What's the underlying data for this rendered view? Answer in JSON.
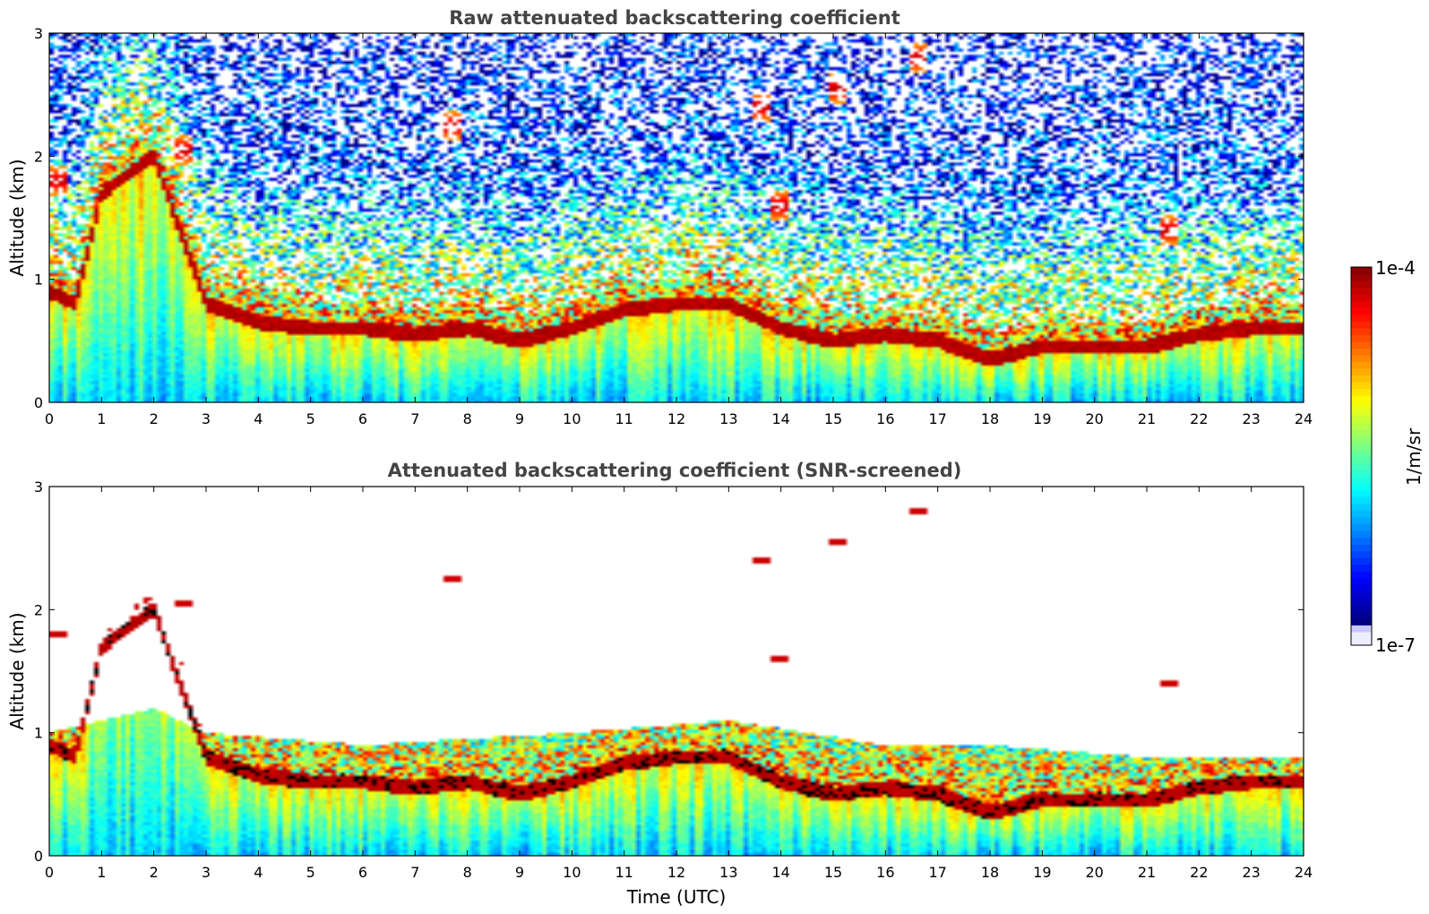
{
  "chart_data": [
    {
      "type": "heatmap",
      "title": "Raw attenuated backscattering coefficient",
      "xlabel": "",
      "ylabel": "Altitude (km)",
      "xlim": [
        0,
        24
      ],
      "ylim": [
        0,
        3
      ],
      "x_ticks": [
        "0",
        "1",
        "2",
        "3",
        "4",
        "5",
        "6",
        "7",
        "8",
        "9",
        "10",
        "11",
        "12",
        "13",
        "14",
        "15",
        "16",
        "17",
        "18",
        "19",
        "20",
        "21",
        "22",
        "23",
        "24"
      ],
      "y_ticks": [
        "0",
        "1",
        "2",
        "3"
      ],
      "colormap": "jet",
      "color_range": [
        1e-07,
        0.0001
      ],
      "color_scale": "log",
      "features": {
        "boundary_layer_top_km": [
          [
            0,
            0.9
          ],
          [
            0.5,
            0.8
          ],
          [
            1,
            1.7
          ],
          [
            2,
            2.0
          ],
          [
            3,
            0.8
          ],
          [
            4,
            0.65
          ],
          [
            5,
            0.6
          ],
          [
            6,
            0.6
          ],
          [
            7,
            0.55
          ],
          [
            8,
            0.6
          ],
          [
            9,
            0.5
          ],
          [
            10,
            0.6
          ],
          [
            11,
            0.75
          ],
          [
            12,
            0.8
          ],
          [
            13,
            0.8
          ],
          [
            14,
            0.6
          ],
          [
            15,
            0.5
          ],
          [
            16,
            0.55
          ],
          [
            17,
            0.5
          ],
          [
            18,
            0.35
          ],
          [
            19,
            0.45
          ],
          [
            20,
            0.45
          ],
          [
            21,
            0.45
          ],
          [
            22,
            0.55
          ],
          [
            23,
            0.6
          ],
          [
            24,
            0.6
          ]
        ],
        "elevated_clouds_km": [
          [
            0.2,
            1.8
          ],
          [
            2.6,
            2.05
          ],
          [
            7.7,
            2.25
          ],
          [
            13.6,
            2.4
          ],
          [
            14.0,
            1.6
          ],
          [
            15.1,
            2.55
          ],
          [
            16.6,
            2.8
          ],
          [
            21.4,
            1.4
          ]
        ],
        "noise_level": "high above boundary layer"
      }
    },
    {
      "type": "heatmap",
      "title": "Attenuated backscattering coefficient (SNR-screened)",
      "xlabel": "Time (UTC)",
      "ylabel": "Altitude (km)",
      "xlim": [
        0,
        24
      ],
      "ylim": [
        0,
        3
      ],
      "x_ticks": [
        "0",
        "1",
        "2",
        "3",
        "4",
        "5",
        "6",
        "7",
        "8",
        "9",
        "10",
        "11",
        "12",
        "13",
        "14",
        "15",
        "16",
        "17",
        "18",
        "19",
        "20",
        "21",
        "22",
        "23",
        "24"
      ],
      "y_ticks": [
        "0",
        "1",
        "2",
        "3"
      ],
      "colormap": "jet",
      "color_range": [
        1e-07,
        0.0001
      ],
      "color_scale": "log",
      "features": {
        "screened": true,
        "screened_top_km": [
          [
            0,
            1.0
          ],
          [
            2,
            1.2
          ],
          [
            3,
            1.0
          ],
          [
            6,
            0.9
          ],
          [
            10,
            1.0
          ],
          [
            13,
            1.1
          ],
          [
            16,
            0.9
          ],
          [
            18,
            0.9
          ],
          [
            21,
            0.8
          ],
          [
            24,
            0.8
          ]
        ]
      }
    }
  ],
  "colorbar": {
    "label": "1/m/sr",
    "max_label": "1e-4",
    "min_label": "1e-7"
  },
  "colors": {
    "stops": [
      "#00007f",
      "#0000ff",
      "#0080ff",
      "#00ffff",
      "#80ff80",
      "#ffff00",
      "#ff8000",
      "#ff0000",
      "#7f0000"
    ]
  }
}
